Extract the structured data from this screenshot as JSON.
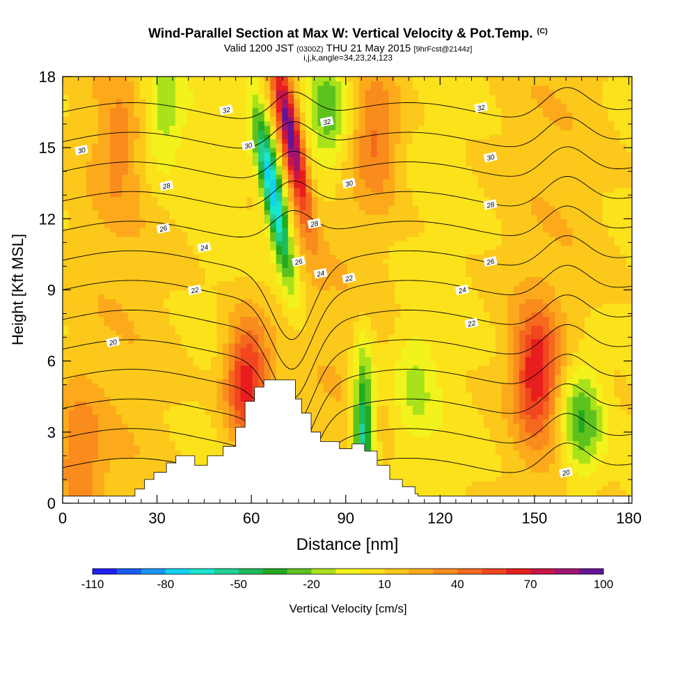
{
  "chart_data": {
    "type": "heatmap",
    "title": "Wind-Parallel Section at Max W: Vertical Velocity & Pot.Temp.",
    "copyright_mark": "(C)",
    "subtitle": {
      "valid": "Valid 1200 JST",
      "utc": "(0300Z)",
      "date": "THU 21 May 2015",
      "forecast": "[9hrFcst@2144z]"
    },
    "indices_label": "i,j,k,angle=34,23,24,123",
    "xlabel": "Distance [nm]",
    "ylabel": "Height [Kft MSL]",
    "xlim": [
      0,
      181
    ],
    "ylim": [
      0,
      18
    ],
    "x_ticks": [
      0,
      30,
      60,
      90,
      120,
      150,
      180
    ],
    "y_ticks": [
      0,
      3,
      6,
      9,
      12,
      15,
      18
    ],
    "colorbar": {
      "label": "Vertical Velocity [cm/s]",
      "tick_labels": [
        "-110",
        "-80",
        "-50",
        "-20",
        "10",
        "40",
        "70",
        "100"
      ],
      "tick_values": [
        -110,
        -80,
        -50,
        -20,
        10,
        40,
        70,
        100
      ],
      "range": [
        -110,
        100
      ],
      "interval": 10,
      "colors": [
        "#1f1ff2",
        "#1a5cf5",
        "#1496f5",
        "#11d2f2",
        "#1ae6cf",
        "#1fd196",
        "#1dbb5a",
        "#22aa22",
        "#5ec21e",
        "#a9e21b",
        "#f2f21c",
        "#fce21b",
        "#fcc81b",
        "#fcaa1b",
        "#f98c1c",
        "#f5691e",
        "#f2471f",
        "#e81e1e",
        "#c81446",
        "#9e1470",
        "#641496"
      ]
    },
    "w_features": [
      {
        "x": 72.5,
        "y": 15.5,
        "w": 85
      },
      {
        "x": 67,
        "y": 13.0,
        "w": -90
      },
      {
        "x": 95.5,
        "y": 2.9,
        "w": -70
      },
      {
        "x": 150.5,
        "y": 5.5,
        "w": 55
      },
      {
        "x": 58.5,
        "y": 5.2,
        "w": 60
      },
      {
        "x": 84,
        "y": 16.5,
        "w": -45
      },
      {
        "x": 32,
        "y": 16.5,
        "w": -30
      },
      {
        "x": 165,
        "y": 3.5,
        "w": -45
      },
      {
        "x": 100,
        "y": 15.5,
        "w": 30
      },
      {
        "x": 18,
        "y": 15.0,
        "w": 18
      },
      {
        "x": 5,
        "y": 2.0,
        "w": 28
      },
      {
        "x": 112,
        "y": 5.0,
        "w": -20
      }
    ],
    "theta_contours": {
      "units": "C",
      "levels": [
        20,
        21,
        22,
        23,
        24,
        25,
        26,
        27,
        28,
        29,
        30,
        31,
        32
      ],
      "labels": [
        {
          "text": "32",
          "x": 52,
          "y": 16.6
        },
        {
          "text": "32",
          "x": 84,
          "y": 16.1
        },
        {
          "text": "32",
          "x": 133,
          "y": 16.7
        },
        {
          "text": "30",
          "x": 6,
          "y": 14.9
        },
        {
          "text": "30",
          "x": 59,
          "y": 15.1
        },
        {
          "text": "30",
          "x": 91,
          "y": 13.5
        },
        {
          "text": "30",
          "x": 136,
          "y": 14.6
        },
        {
          "text": "28",
          "x": 33,
          "y": 13.4
        },
        {
          "text": "28",
          "x": 80,
          "y": 11.8
        },
        {
          "text": "28",
          "x": 136,
          "y": 12.6
        },
        {
          "text": "26",
          "x": 32,
          "y": 11.6
        },
        {
          "text": "26",
          "x": 75,
          "y": 10.2
        },
        {
          "text": "26",
          "x": 136,
          "y": 10.2
        },
        {
          "text": "24",
          "x": 45,
          "y": 10.8
        },
        {
          "text": "24",
          "x": 82,
          "y": 9.7
        },
        {
          "text": "24",
          "x": 127,
          "y": 9.0
        },
        {
          "text": "22",
          "x": 42,
          "y": 9.0
        },
        {
          "text": "22",
          "x": 91,
          "y": 9.5
        },
        {
          "text": "22",
          "x": 130,
          "y": 7.6
        },
        {
          "text": "20",
          "x": 16,
          "y": 6.8
        },
        {
          "text": "20",
          "x": 160,
          "y": 1.3
        }
      ]
    },
    "terrain_kft": [
      [
        0,
        0.3
      ],
      [
        22,
        0.3
      ],
      [
        23,
        0.6
      ],
      [
        26,
        1.0
      ],
      [
        29,
        1.3
      ],
      [
        33,
        1.7
      ],
      [
        36,
        2.0
      ],
      [
        42,
        1.6
      ],
      [
        46,
        2.0
      ],
      [
        51,
        2.4
      ],
      [
        55,
        3.2
      ],
      [
        58,
        4.3
      ],
      [
        61,
        4.9
      ],
      [
        64,
        5.2
      ],
      [
        70,
        5.2
      ],
      [
        74,
        4.4
      ],
      [
        76,
        3.8
      ],
      [
        79,
        3.0
      ],
      [
        82,
        2.6
      ],
      [
        88,
        2.3
      ],
      [
        92,
        2.5
      ],
      [
        96,
        2.2
      ],
      [
        100,
        1.6
      ],
      [
        104,
        1.0
      ],
      [
        108,
        0.7
      ],
      [
        112,
        0.4
      ],
      [
        113,
        0.3
      ],
      [
        181,
        0.3
      ]
    ]
  }
}
